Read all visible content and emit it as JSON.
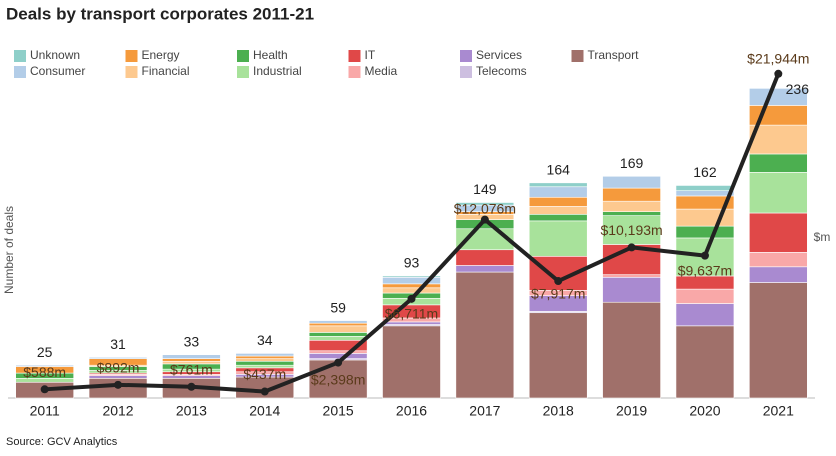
{
  "chart_data": {
    "type": "bar",
    "stacked": true,
    "title": "Deals by transport corporates 2011-21",
    "y_label": "Number of deals",
    "y2_label": "$m",
    "source": "Source: GCV Analytics",
    "categories": [
      "2011",
      "2012",
      "2013",
      "2014",
      "2015",
      "2016",
      "2017",
      "2018",
      "2019",
      "2020",
      "2021"
    ],
    "ylim": [
      0,
      250
    ],
    "y2lim": [
      0,
      22200
    ],
    "series": [
      {
        "name": "Unknown",
        "color": "#8ecfc9",
        "values": [
          0,
          0,
          0,
          0,
          0,
          1,
          2,
          3,
          0,
          4,
          0
        ]
      },
      {
        "name": "Consumer",
        "color": "#b3cde8",
        "values": [
          1,
          1,
          3,
          2,
          2,
          5,
          5,
          8,
          9,
          4,
          13
        ]
      },
      {
        "name": "Energy",
        "color": "#f59a3c",
        "values": [
          5,
          5,
          2,
          2,
          2,
          3,
          2,
          7,
          10,
          10,
          15
        ]
      },
      {
        "name": "Financial",
        "color": "#fdc98f",
        "values": [
          0,
          1,
          2,
          2,
          5,
          4,
          4,
          6,
          8,
          13,
          22
        ]
      },
      {
        "name": "Health",
        "color": "#4caf50",
        "values": [
          4,
          3,
          4,
          3,
          3,
          4,
          7,
          5,
          3,
          9,
          14
        ]
      },
      {
        "name": "Industrial",
        "color": "#a8e29b",
        "values": [
          3,
          2,
          2,
          2,
          3,
          5,
          16,
          27,
          22,
          29,
          31
        ]
      },
      {
        "name": "IT",
        "color": "#e04848",
        "values": [
          0,
          1,
          2,
          3,
          8,
          10,
          12,
          26,
          23,
          10,
          30
        ]
      },
      {
        "name": "Media",
        "color": "#f9a8a8",
        "values": [
          0,
          1,
          1,
          2,
          2,
          3,
          0,
          4,
          2,
          11,
          11
        ]
      },
      {
        "name": "Services",
        "color": "#a98ad0",
        "values": [
          0,
          2,
          2,
          2,
          4,
          2,
          5,
          12,
          19,
          17,
          12
        ]
      },
      {
        "name": "Telecoms",
        "color": "#cdbfe0",
        "values": [
          0,
          0,
          0,
          0,
          1,
          1,
          0,
          1,
          0,
          0,
          0
        ]
      },
      {
        "name": "Transport",
        "color": "#a0706a",
        "values": [
          12,
          15,
          15,
          16,
          29,
          55,
          96,
          65,
          73,
          55,
          88
        ]
      }
    ],
    "totals": [
      25,
      31,
      33,
      34,
      59,
      93,
      149,
      164,
      169,
      162,
      236
    ],
    "line": {
      "axis": "y2",
      "color": "#222222",
      "label_color": "#5a3a1a",
      "values": [
        588,
        892,
        761,
        437,
        2398,
        6711,
        12076,
        7917,
        10193,
        9637,
        21944
      ],
      "value_labels": [
        "$588m",
        "$892m",
        "$761m",
        "$437m",
        "$2,398m",
        "$6,711m",
        "$12,076m",
        "$7,917m",
        "$10,193m",
        "$9,637m",
        "$21,944m"
      ]
    }
  }
}
